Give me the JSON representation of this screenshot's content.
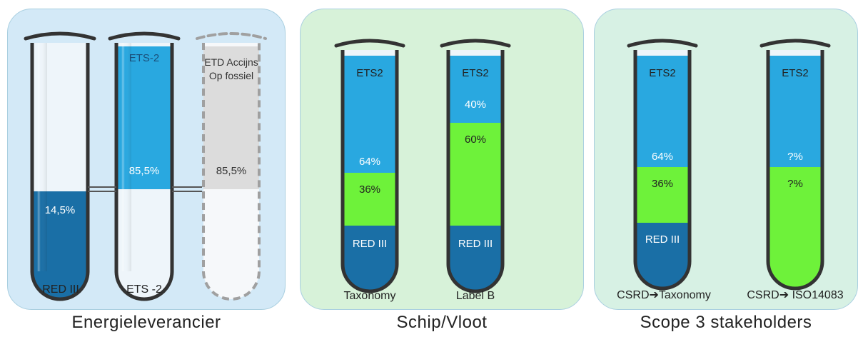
{
  "panels": [
    {
      "caption": "Energieleverancier",
      "bg": "#d3e9f7",
      "tubes": [
        {
          "label": "RED III",
          "segments": [
            {
              "text": "14,5%",
              "color": "#1a6fa6"
            }
          ]
        },
        {
          "label": "ETS -2",
          "segments": [
            {
              "text": "ETS-2",
              "color": "#29a8e0"
            },
            {
              "text": "85,5%",
              "color": "#29a8e0"
            }
          ]
        },
        {
          "label": "",
          "segments": [
            {
              "text": "ETD Accijns Op fossiel",
              "color": "#dcdcdc"
            },
            {
              "text": "85,5%",
              "color": "#dcdcdc"
            }
          ]
        }
      ]
    },
    {
      "caption": "Schip/Vloot",
      "bg": "#d7f2d9",
      "tubes": [
        {
          "label": "Taxonomy",
          "segments": [
            {
              "text": "ETS2",
              "color": "#29a8e0"
            },
            {
              "text": "64%",
              "color": "#29a8e0"
            },
            {
              "text": "36%",
              "color": "#6ef23a"
            },
            {
              "text": "RED III",
              "color": "#1a6fa6"
            }
          ]
        },
        {
          "label": "Label B",
          "segments": [
            {
              "text": "ETS2",
              "color": "#29a8e0"
            },
            {
              "text": "40%",
              "color": "#29a8e0"
            },
            {
              "text": "60%",
              "color": "#6ef23a"
            },
            {
              "text": "RED III",
              "color": "#1a6fa6"
            }
          ]
        }
      ]
    },
    {
      "caption": "Scope 3 stakeholders",
      "bg": "#d7f1e4",
      "tubes": [
        {
          "label": "CSRD➔Taxonomy",
          "segments": [
            {
              "text": "ETS2",
              "color": "#29a8e0"
            },
            {
              "text": "64%",
              "color": "#29a8e0"
            },
            {
              "text": "36%",
              "color": "#6ef23a"
            },
            {
              "text": "RED III",
              "color": "#1a6fa6"
            }
          ]
        },
        {
          "label": "CSRD➔ ISO14083",
          "segments": [
            {
              "text": "ETS2",
              "color": "#29a8e0"
            },
            {
              "text": "?%",
              "color": "#29a8e0"
            },
            {
              "text": "?%",
              "color": "#6ef23a"
            }
          ]
        }
      ]
    }
  ],
  "colors": {
    "outline": "#333333",
    "glass": "#eef5fa",
    "connector": "#555555",
    "dashed": "#a0a0a0"
  }
}
